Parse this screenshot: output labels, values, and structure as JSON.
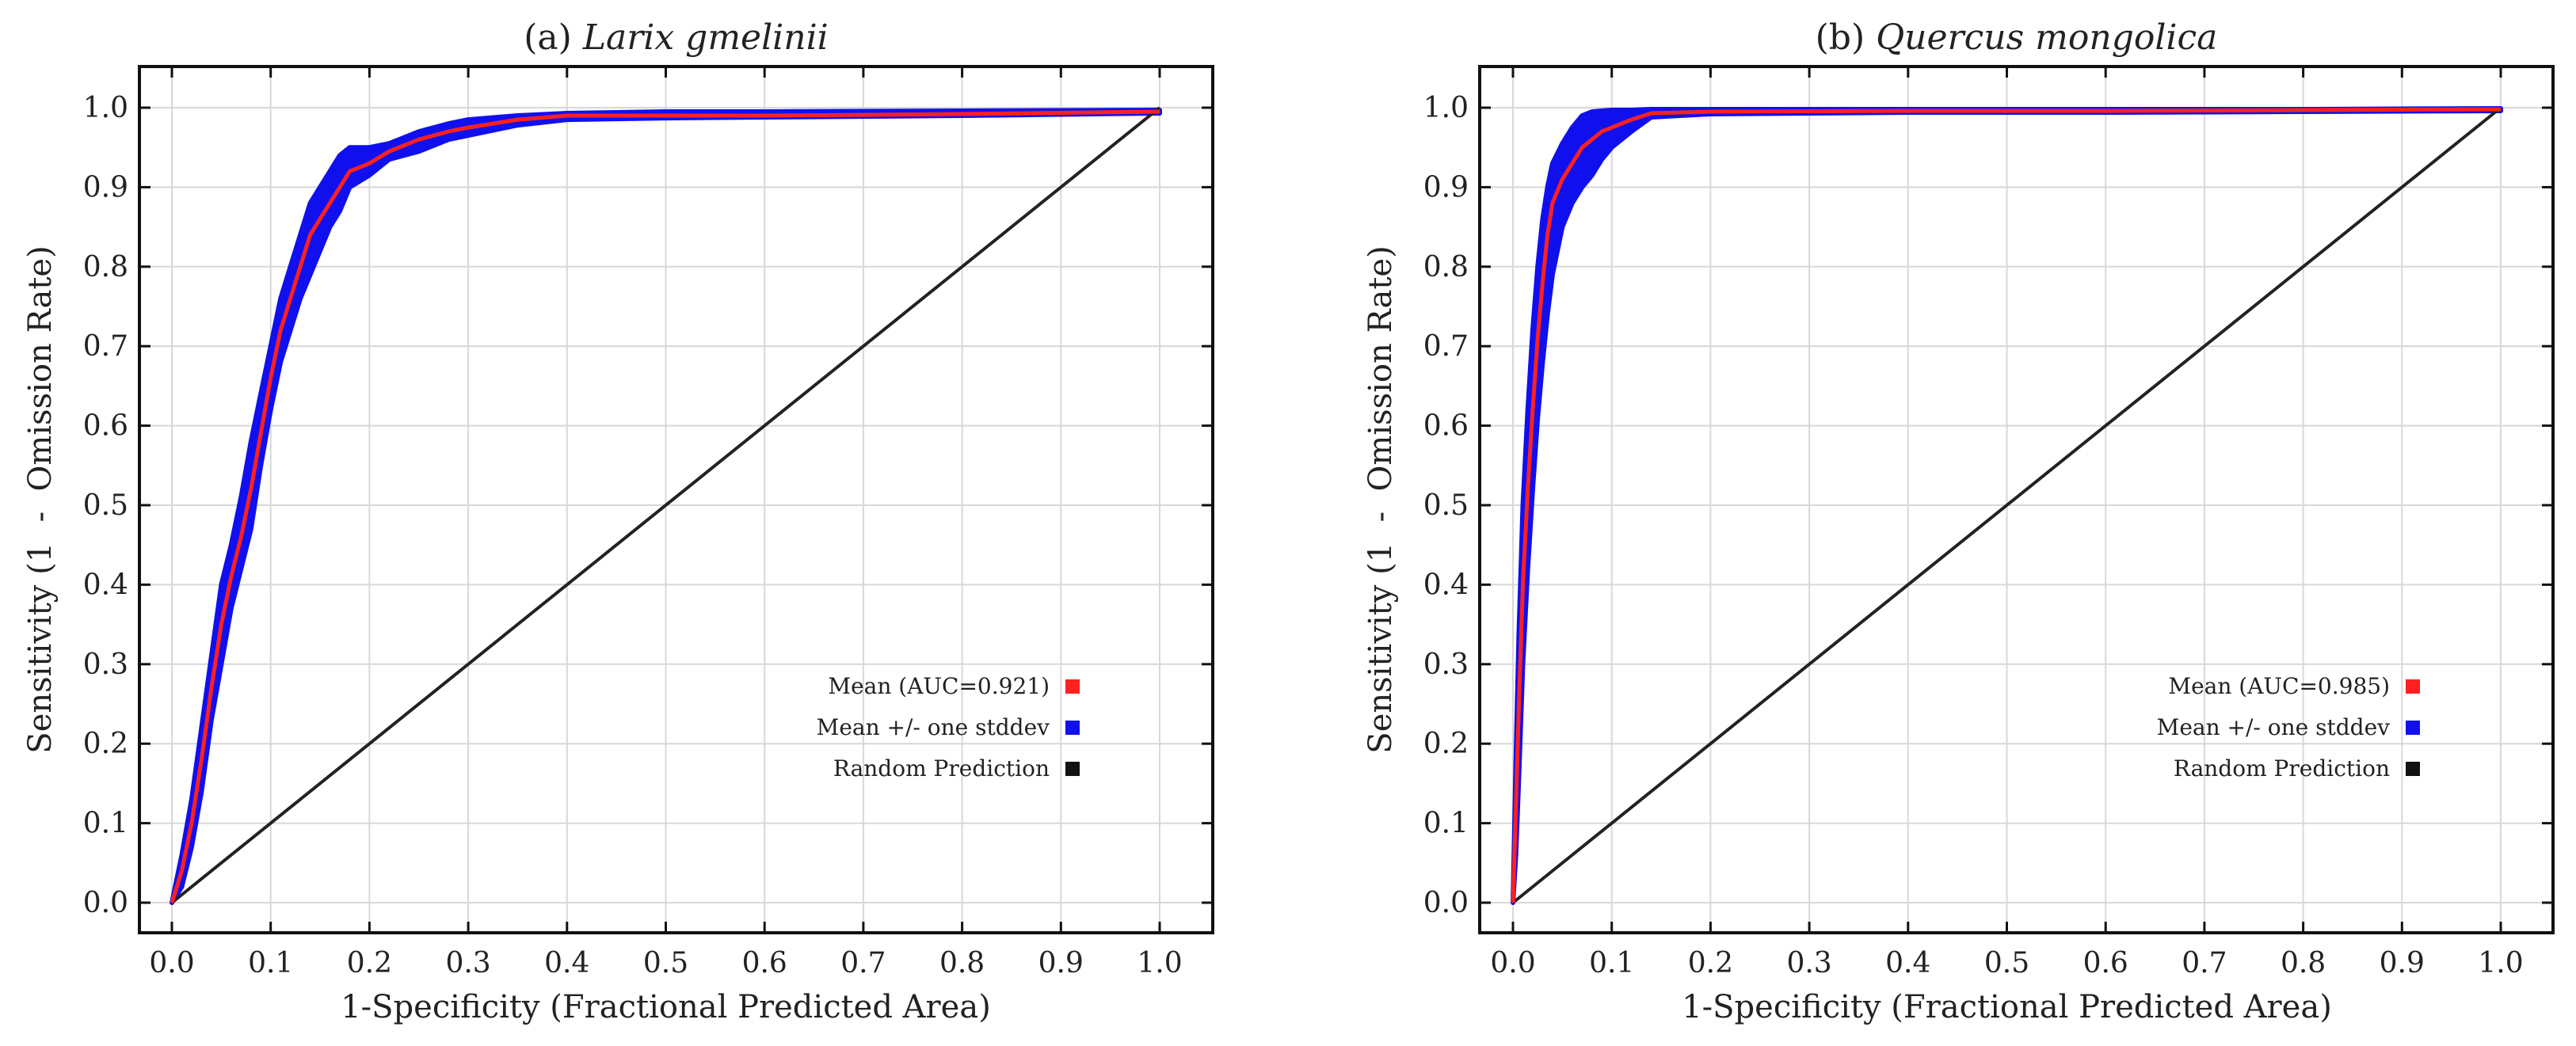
{
  "chart_data": [
    {
      "type": "line",
      "title_prefix": "(a) ",
      "title_species": "Larix gmelinii",
      "xlabel": "1-Specificity (Fractional  Predicted  Area)",
      "ylabel": "Sensitivity (1  -  Omission Rate)",
      "xlim": [
        0,
        1
      ],
      "ylim": [
        0,
        1
      ],
      "xticks": [
        "0.0",
        "0.1",
        "0.2",
        "0.3",
        "0.4",
        "0.5",
        "0.6",
        "0.7",
        "0.8",
        "0.9",
        "1.0"
      ],
      "yticks": [
        "0.0",
        "0.1",
        "0.2",
        "0.3",
        "0.4",
        "0.5",
        "0.6",
        "0.7",
        "0.8",
        "0.9",
        "1.0"
      ],
      "grid": true,
      "legend_position": "bottom-right",
      "legend": [
        {
          "label": "Mean (AUC=0.921)",
          "color": "#ff2020"
        },
        {
          "label": "Mean +/- one stddev",
          "color": "#1010ee"
        },
        {
          "label": "Random Prediction",
          "color": "#111111"
        }
      ],
      "series": [
        {
          "name": "Mean (AUC=0.921)",
          "color": "#ff2020",
          "x": [
            0,
            0.01,
            0.02,
            0.03,
            0.04,
            0.05,
            0.06,
            0.07,
            0.08,
            0.09,
            0.1,
            0.11,
            0.12,
            0.13,
            0.14,
            0.15,
            0.16,
            0.17,
            0.18,
            0.2,
            0.22,
            0.25,
            0.28,
            0.3,
            0.35,
            0.4,
            0.5,
            0.6,
            0.8,
            1.0
          ],
          "y": [
            0,
            0.04,
            0.1,
            0.18,
            0.27,
            0.35,
            0.41,
            0.46,
            0.52,
            0.59,
            0.66,
            0.72,
            0.76,
            0.8,
            0.84,
            0.86,
            0.88,
            0.9,
            0.92,
            0.93,
            0.945,
            0.96,
            0.97,
            0.975,
            0.985,
            0.99,
            0.99,
            0.99,
            0.992,
            0.995
          ]
        },
        {
          "name": "Mean +/- one stddev (upper)",
          "color": "#1010ee",
          "x": [
            0,
            0.01,
            0.02,
            0.03,
            0.04,
            0.05,
            0.06,
            0.07,
            0.08,
            0.09,
            0.1,
            0.11,
            0.12,
            0.13,
            0.14,
            0.15,
            0.16,
            0.17,
            0.18,
            0.2,
            0.22,
            0.25,
            0.28,
            0.3,
            0.35,
            0.4,
            0.5,
            0.6,
            0.8,
            1.0
          ],
          "y": [
            0,
            0.06,
            0.13,
            0.22,
            0.31,
            0.4,
            0.45,
            0.51,
            0.58,
            0.64,
            0.7,
            0.76,
            0.8,
            0.84,
            0.88,
            0.9,
            0.92,
            0.94,
            0.95,
            0.95,
            0.955,
            0.97,
            0.98,
            0.985,
            0.99,
            0.993,
            0.995,
            0.995,
            0.996,
            0.997
          ]
        },
        {
          "name": "Mean +/- one stddev (lower)",
          "color": "#1010ee",
          "x": [
            0,
            0.01,
            0.02,
            0.03,
            0.04,
            0.05,
            0.06,
            0.07,
            0.08,
            0.09,
            0.1,
            0.11,
            0.12,
            0.13,
            0.14,
            0.15,
            0.16,
            0.17,
            0.18,
            0.2,
            0.22,
            0.25,
            0.28,
            0.3,
            0.35,
            0.4,
            0.5,
            0.6,
            0.8,
            1.0
          ],
          "y": [
            0,
            0.02,
            0.07,
            0.14,
            0.23,
            0.3,
            0.37,
            0.42,
            0.47,
            0.55,
            0.62,
            0.68,
            0.72,
            0.76,
            0.79,
            0.82,
            0.85,
            0.87,
            0.9,
            0.915,
            0.935,
            0.945,
            0.96,
            0.965,
            0.978,
            0.985,
            0.987,
            0.988,
            0.99,
            0.993
          ]
        },
        {
          "name": "Random Prediction",
          "color": "#222222",
          "x": [
            0,
            1
          ],
          "y": [
            0,
            1
          ]
        }
      ]
    },
    {
      "type": "line",
      "title_prefix": "(b) ",
      "title_species": "Quercus mongolica",
      "xlabel": "1-Specificity (Fractional  Predicted  Area)",
      "ylabel": "Sensitivity (1  -  Omission Rate)",
      "xlim": [
        0,
        1
      ],
      "ylim": [
        0,
        1
      ],
      "xticks": [
        "0.0",
        "0.1",
        "0.2",
        "0.3",
        "0.4",
        "0.5",
        "0.6",
        "0.7",
        "0.8",
        "0.9",
        "1.0"
      ],
      "yticks": [
        "0.0",
        "0.1",
        "0.2",
        "0.3",
        "0.4",
        "0.5",
        "0.6",
        "0.7",
        "0.8",
        "0.9",
        "1.0"
      ],
      "grid": true,
      "legend_position": "bottom-right",
      "legend": [
        {
          "label": "Mean (AUC=0.985)",
          "color": "#ff2020"
        },
        {
          "label": "Mean +/- one stddev",
          "color": "#1010ee"
        },
        {
          "label": "Random Prediction",
          "color": "#111111"
        }
      ],
      "series": [
        {
          "name": "Mean (AUC=0.985)",
          "color": "#ff2020",
          "x": [
            0,
            0.003,
            0.006,
            0.01,
            0.015,
            0.02,
            0.025,
            0.03,
            0.035,
            0.04,
            0.05,
            0.06,
            0.07,
            0.08,
            0.09,
            0.1,
            0.12,
            0.14,
            0.2,
            0.4,
            0.6,
            0.8,
            1.0
          ],
          "y": [
            0,
            0.12,
            0.25,
            0.4,
            0.52,
            0.62,
            0.71,
            0.78,
            0.84,
            0.88,
            0.91,
            0.93,
            0.95,
            0.96,
            0.97,
            0.975,
            0.985,
            0.993,
            0.995,
            0.996,
            0.996,
            0.997,
            0.998
          ]
        },
        {
          "name": "Mean +/- one stddev (upper)",
          "color": "#1010ee",
          "x": [
            0,
            0.003,
            0.006,
            0.01,
            0.015,
            0.02,
            0.025,
            0.03,
            0.035,
            0.04,
            0.05,
            0.06,
            0.07,
            0.08,
            0.09,
            0.1,
            0.12,
            0.14,
            0.2,
            0.4,
            0.6,
            0.8,
            1.0
          ],
          "y": [
            0,
            0.18,
            0.34,
            0.5,
            0.62,
            0.72,
            0.8,
            0.86,
            0.9,
            0.93,
            0.955,
            0.975,
            0.99,
            0.995,
            0.996,
            0.997,
            0.997,
            0.998,
            0.998,
            0.998,
            0.998,
            0.998,
            0.999
          ]
        },
        {
          "name": "Mean +/- one stddev (lower)",
          "color": "#1010ee",
          "x": [
            0,
            0.003,
            0.006,
            0.01,
            0.015,
            0.02,
            0.025,
            0.03,
            0.035,
            0.04,
            0.05,
            0.06,
            0.07,
            0.08,
            0.09,
            0.1,
            0.12,
            0.14,
            0.2,
            0.4,
            0.6,
            0.8,
            1.0
          ],
          "y": [
            0,
            0.06,
            0.16,
            0.3,
            0.42,
            0.52,
            0.61,
            0.68,
            0.74,
            0.79,
            0.85,
            0.88,
            0.9,
            0.915,
            0.935,
            0.95,
            0.97,
            0.988,
            0.992,
            0.994,
            0.994,
            0.995,
            0.996
          ]
        },
        {
          "name": "Random Prediction",
          "color": "#222222",
          "x": [
            0,
            1
          ],
          "y": [
            0,
            1
          ]
        }
      ]
    }
  ]
}
